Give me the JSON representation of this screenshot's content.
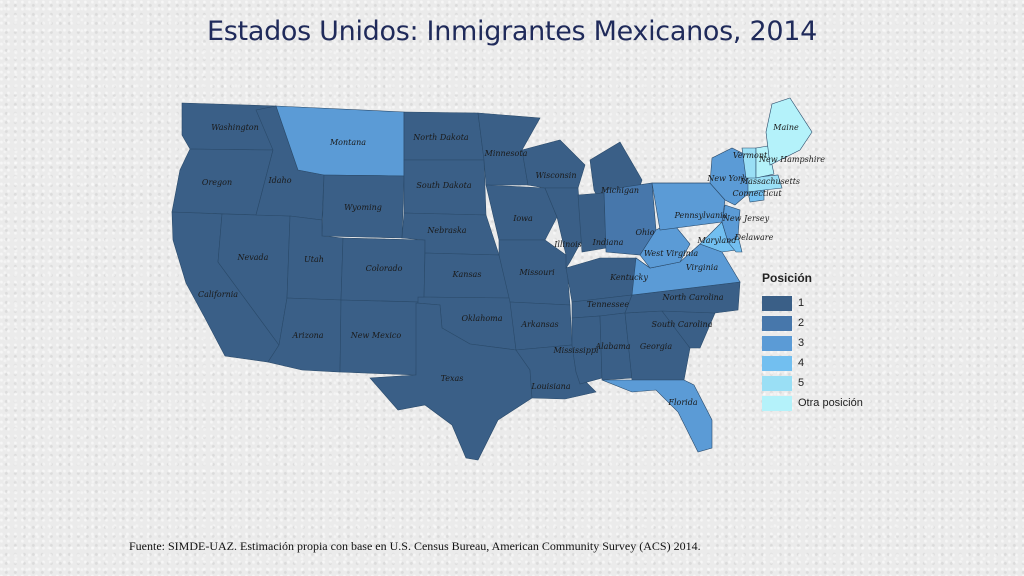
{
  "title": "Estados Unidos: Inmigrantes Mexicanos, 2014",
  "source": "Fuente: SIMDE-UAZ. Estimación propia con base en U.S. Census Bureau, American Community Survey (ACS) 2014.",
  "legend": {
    "title": "Posición",
    "items": [
      {
        "label": "1",
        "color": "#3a5f87"
      },
      {
        "label": "2",
        "color": "#4777ab"
      },
      {
        "label": "3",
        "color": "#5b9bd6"
      },
      {
        "label": "4",
        "color": "#72bff0"
      },
      {
        "label": "5",
        "color": "#9adff5"
      },
      {
        "label": "Otra posición",
        "color": "#b4f2fa"
      }
    ]
  },
  "states": [
    {
      "name": "Washington",
      "rank": 1
    },
    {
      "name": "Oregon",
      "rank": 1
    },
    {
      "name": "California",
      "rank": 1
    },
    {
      "name": "Nevada",
      "rank": 1
    },
    {
      "name": "Idaho",
      "rank": 1
    },
    {
      "name": "Montana",
      "rank": 3
    },
    {
      "name": "Wyoming",
      "rank": 1
    },
    {
      "name": "Utah",
      "rank": 1
    },
    {
      "name": "Arizona",
      "rank": 1
    },
    {
      "name": "Colorado",
      "rank": 1
    },
    {
      "name": "New Mexico",
      "rank": 1
    },
    {
      "name": "North Dakota",
      "rank": 1
    },
    {
      "name": "South Dakota",
      "rank": 1
    },
    {
      "name": "Nebraska",
      "rank": 1
    },
    {
      "name": "Kansas",
      "rank": 1
    },
    {
      "name": "Oklahoma",
      "rank": 1
    },
    {
      "name": "Texas",
      "rank": 1
    },
    {
      "name": "Minnesota",
      "rank": 1
    },
    {
      "name": "Iowa",
      "rank": 1
    },
    {
      "name": "Missouri",
      "rank": 1
    },
    {
      "name": "Arkansas",
      "rank": 1
    },
    {
      "name": "Louisiana",
      "rank": 1
    },
    {
      "name": "Wisconsin",
      "rank": 1
    },
    {
      "name": "Illinois",
      "rank": 1
    },
    {
      "name": "Michigan",
      "rank": 1
    },
    {
      "name": "Indiana",
      "rank": 1
    },
    {
      "name": "Ohio",
      "rank": 2
    },
    {
      "name": "Kentucky",
      "rank": 1
    },
    {
      "name": "Tennessee",
      "rank": 1
    },
    {
      "name": "Mississippi",
      "rank": 1
    },
    {
      "name": "Alabama",
      "rank": 1
    },
    {
      "name": "Georgia",
      "rank": 1
    },
    {
      "name": "Florida",
      "rank": 3
    },
    {
      "name": "South Carolina",
      "rank": 1
    },
    {
      "name": "North Carolina",
      "rank": 1
    },
    {
      "name": "Virginia",
      "rank": 3
    },
    {
      "name": "West Virginia",
      "rank": 3
    },
    {
      "name": "Pennsylvania",
      "rank": 3
    },
    {
      "name": "New York",
      "rank": 3
    },
    {
      "name": "Maryland",
      "rank": 4
    },
    {
      "name": "Delaware",
      "rank": 4
    },
    {
      "name": "New Jersey",
      "rank": 3
    },
    {
      "name": "Connecticut",
      "rank": 4
    },
    {
      "name": "Massachusetts",
      "rank": 5
    },
    {
      "name": "Vermont",
      "rank": 5
    },
    {
      "name": "New Hampshire",
      "rank": 6
    },
    {
      "name": "Maine",
      "rank": 6
    }
  ]
}
